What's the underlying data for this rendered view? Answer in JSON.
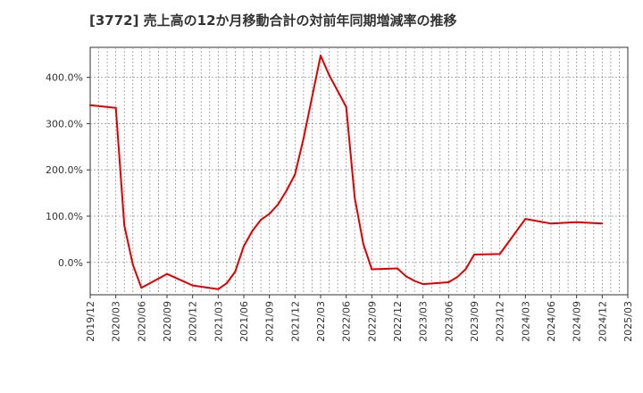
{
  "chart_data": {
    "type": "line",
    "title": "[3772]  売上高の12か月移動合計の対前年同期増減率の推移",
    "xlabel": "",
    "ylabel": "",
    "x_ticks": [
      "2019/12",
      "2020/03",
      "2020/06",
      "2020/09",
      "2020/12",
      "2021/03",
      "2021/06",
      "2021/09",
      "2021/12",
      "2022/03",
      "2022/06",
      "2022/09",
      "2022/12",
      "2023/03",
      "2023/06",
      "2023/09",
      "2023/12",
      "2024/03",
      "2024/06",
      "2024/09",
      "2024/12",
      "2025/03"
    ],
    "y_ticks": [
      {
        "value": 0,
        "label": "0.0%"
      },
      {
        "value": 100,
        "label": "100.0%"
      },
      {
        "value": 200,
        "label": "200.0%"
      },
      {
        "value": 300,
        "label": "300.0%"
      },
      {
        "value": 400,
        "label": "400.0%"
      }
    ],
    "ylim": [
      -70,
      465
    ],
    "xlim": [
      "2019/12",
      "2025/03"
    ],
    "grid": true,
    "series": [
      {
        "color": "#e00000",
        "points": [
          [
            "2019/12",
            340
          ],
          [
            "2020/03",
            334
          ],
          [
            "2020/04",
            80
          ],
          [
            "2020/05",
            -5
          ],
          [
            "2020/06",
            -55
          ],
          [
            "2020/09",
            -25
          ],
          [
            "2020/12",
            -50
          ],
          [
            "2021/03",
            -58
          ],
          [
            "2021/04",
            -45
          ],
          [
            "2021/05",
            -20
          ],
          [
            "2021/06",
            35
          ],
          [
            "2021/07",
            68
          ],
          [
            "2021/08",
            92
          ],
          [
            "2021/09",
            105
          ],
          [
            "2021/10",
            125
          ],
          [
            "2021/11",
            155
          ],
          [
            "2021/12",
            190
          ],
          [
            "2022/01",
            268
          ],
          [
            "2022/03",
            447
          ],
          [
            "2022/04",
            405
          ],
          [
            "2022/06",
            336
          ],
          [
            "2022/07",
            140
          ],
          [
            "2022/08",
            40
          ],
          [
            "2022/09",
            -15
          ],
          [
            "2022/12",
            -13
          ],
          [
            "2023/01",
            -30
          ],
          [
            "2023/02",
            -40
          ],
          [
            "2023/03",
            -47
          ],
          [
            "2023/06",
            -43
          ],
          [
            "2023/07",
            -32
          ],
          [
            "2023/08",
            -15
          ],
          [
            "2023/09",
            17
          ],
          [
            "2023/12",
            18
          ],
          [
            "2024/03",
            94
          ],
          [
            "2024/06",
            84
          ],
          [
            "2024/09",
            87
          ],
          [
            "2024/12",
            84
          ]
        ]
      }
    ]
  }
}
